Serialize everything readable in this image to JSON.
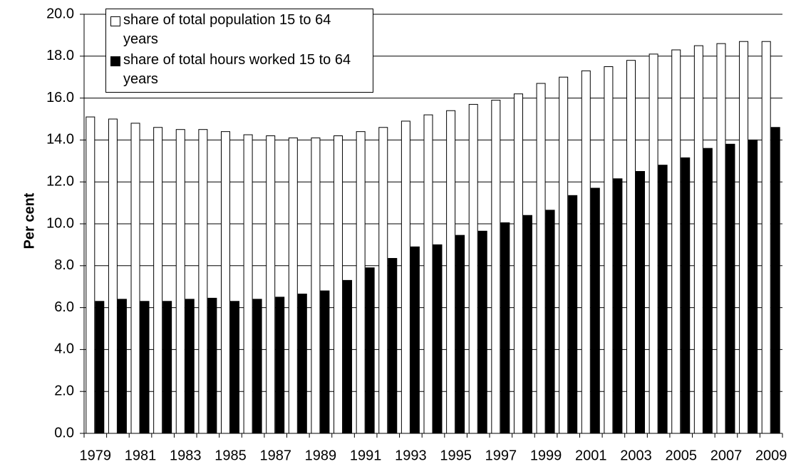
{
  "chart_data": {
    "type": "bar",
    "y_label": "Per cent",
    "categories": [
      "1979",
      null,
      "1981",
      null,
      "1983",
      null,
      "1985",
      null,
      "1987",
      null,
      "1989",
      null,
      "1991",
      null,
      "1993",
      null,
      "1995",
      null,
      "1997",
      null,
      "1999",
      null,
      "2001",
      null,
      "2003",
      null,
      "2005",
      null,
      "2007",
      null,
      "2009"
    ],
    "series": [
      {
        "name": "share of total population 15 to 64 years",
        "color": "#ffffff",
        "values": [
          15.1,
          15.0,
          14.8,
          14.6,
          14.5,
          14.5,
          14.4,
          14.25,
          14.2,
          14.1,
          14.1,
          14.2,
          14.4,
          14.6,
          14.9,
          15.2,
          15.4,
          15.7,
          15.9,
          16.2,
          16.7,
          17.0,
          17.3,
          17.5,
          17.8,
          18.1,
          18.3,
          18.5,
          18.6,
          18.7,
          18.7
        ]
      },
      {
        "name": "share of total hours worked 15 to 64 years",
        "color": "#000000",
        "values": [
          6.3,
          6.4,
          6.3,
          6.3,
          6.4,
          6.45,
          6.3,
          6.4,
          6.5,
          6.65,
          6.8,
          7.3,
          7.9,
          8.35,
          8.9,
          9.0,
          9.45,
          9.65,
          10.05,
          10.4,
          10.65,
          11.35,
          11.7,
          12.15,
          12.5,
          12.8,
          13.15,
          13.6,
          13.8,
          14.0,
          14.6
        ]
      }
    ],
    "ylim": [
      0,
      20
    ],
    "yticks": [
      {
        "value": 0,
        "label": "0.0"
      },
      {
        "value": 2,
        "label": "2.0"
      },
      {
        "value": 4,
        "label": "4.0"
      },
      {
        "value": 6,
        "label": "6.0"
      },
      {
        "value": 8,
        "label": "8.0"
      },
      {
        "value": 10,
        "label": "10.0"
      },
      {
        "value": 12,
        "label": "12.0"
      },
      {
        "value": 14,
        "label": "14.0"
      },
      {
        "value": 16,
        "label": "16.0"
      },
      {
        "value": 18,
        "label": "18.0"
      },
      {
        "value": 20,
        "label": "20.0"
      }
    ],
    "grid": true
  }
}
